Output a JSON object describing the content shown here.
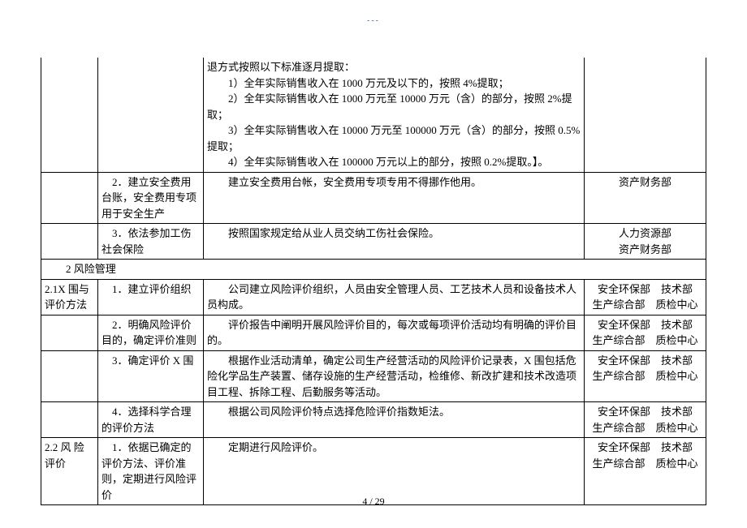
{
  "top_mark": "---",
  "rows": [
    {
      "c1": "",
      "c2": "",
      "c3_lines": [
        "退方式按照以下标准逐月提取：",
        "　　1）全年实际销售收入在 1000 万元及以下的，按照 4%提取；",
        "　　2）全年实际销售收入在 1000 万元至 10000 万元（含）的部分，按照 2%提取；",
        "　　3）全年实际销售收入在 10000 万元至 100000 万元（含）的部分，按照 0.5%提取；",
        "　　4）全年实际销售收入在 100000 万元以上的部分，按照 0.2%提取。】。"
      ],
      "c4": "",
      "no_top": true
    },
    {
      "c1": "",
      "c2": "　2．建立安全费用台账，安全费用专项用于安全生产",
      "c3_lines": [
        "　　建立安全费用台帐，安全费用专项专用不得挪作他用。"
      ],
      "c4": "资产财务部"
    },
    {
      "c1": "",
      "c2": "　3．依法参加工伤社会保险",
      "c3_lines": [
        "　　按照国家规定给从业人员交纳工伤社会保险。"
      ],
      "c4": "人力资源部\n资产财务部"
    }
  ],
  "section2_header": "　　2 风险管理",
  "rows2": [
    {
      "c1": "2.1X 围与评价方法",
      "c2": "　1．建立评价组织",
      "c3_lines": [
        "　　公司建立风险评价组织，人员由安全管理人员、工艺技术人员和设备技术人员构成。"
      ],
      "c4": "安全环保部　技术部\n生产综合部　质检中心"
    },
    {
      "c1": "",
      "c2": "　2．明确风险评价目的，确定评价准则",
      "c3_lines": [
        "　　评价报告中阐明开展风险评价目的，每次或每项评价活动均有明确的评价目的。"
      ],
      "c4": "安全环保部　技术部\n生产综合部　质检中心"
    },
    {
      "c1": "",
      "c2": "　3．确定评价 X 围",
      "c3_lines": [
        "　　根据作业活动清单，确定公司生产经营活动的风险评价记录表，X 围包括危险化学品生产装置、储存设施的生产经营活动，检维修、新改扩建和技术改造项目工程、拆除工程、后勤服务等活动。"
      ],
      "c4": "安全环保部　技术部\n生产综合部　质检中心"
    },
    {
      "c1": "",
      "c2": "　4．选择科学合理的评价方法",
      "c3_lines": [
        "　　根据公司风险评价特点选择危险评价指数矩法。"
      ],
      "c4": "安全环保部　技术部\n生产综合部　质检中心"
    },
    {
      "c1": "2.2 风 险评价",
      "c2": "　1．依据已确定的评价方法、评价准则，定期进行风险评价",
      "c3_lines": [
        "　　定期进行风险评价。"
      ],
      "c4": "安全环保部　技术部\n生产综合部　质检中心"
    }
  ],
  "footer": "4 / 29"
}
